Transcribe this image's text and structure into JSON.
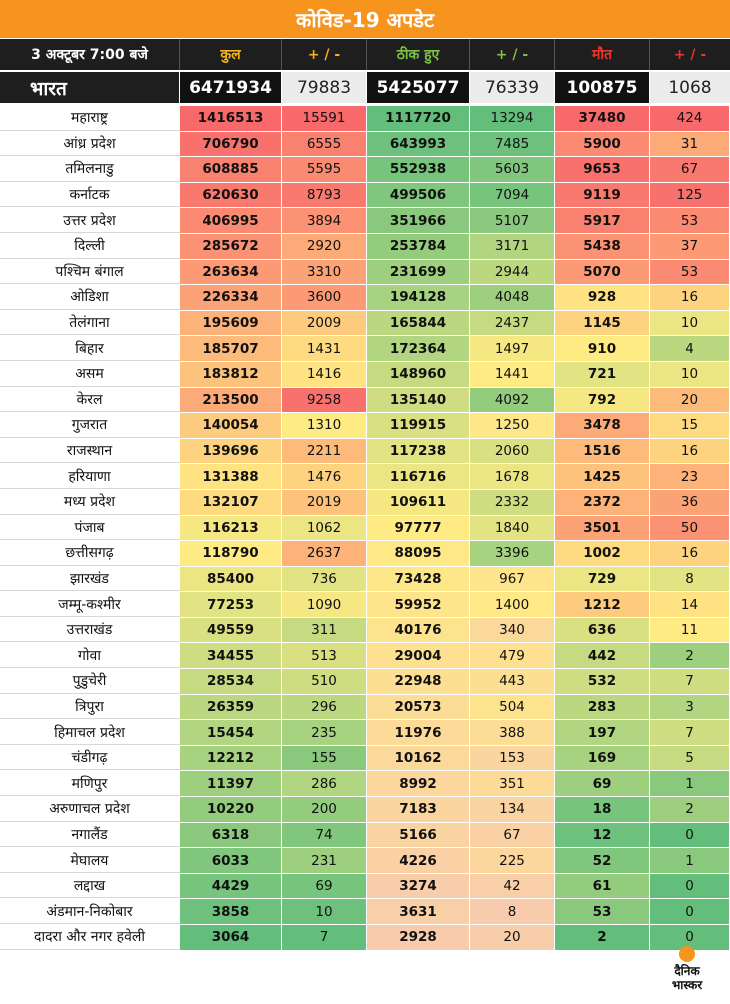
{
  "title": "कोविड-19 अपडेट",
  "header": {
    "date": "3 अक्टूबर 7:00 बजे",
    "total": "कुल",
    "plus_minus": "+ / -",
    "recovered": "ठीक हुए",
    "deaths": "मौत"
  },
  "india": {
    "label": "भारत",
    "total": "6471934",
    "total_change": "79883",
    "recovered": "5425077",
    "recovered_change": "76339",
    "deaths": "100875",
    "deaths_change": "1068"
  },
  "colors": {
    "header_bg": "#f7941d",
    "dark_bg": "#1e1e1e",
    "total_label": "#f2b21a",
    "recovered_label": "#7ac142",
    "deaths_label": "#e6362f"
  },
  "chart_data": {
    "type": "table",
    "columns": [
      "state",
      "total",
      "total_change",
      "recovered",
      "recovered_change",
      "deaths",
      "deaths_change"
    ],
    "rows": [
      {
        "state": "महाराष्ट्र",
        "total": 1416513,
        "total_change": 15591,
        "recovered": 1117720,
        "recovered_change": 13294,
        "deaths": 37480,
        "deaths_change": 424
      },
      {
        "state": "आंध्र प्रदेश",
        "total": 706790,
        "total_change": 6555,
        "recovered": 643993,
        "recovered_change": 7485,
        "deaths": 5900,
        "deaths_change": 31
      },
      {
        "state": "तमिलनाडु",
        "total": 608885,
        "total_change": 5595,
        "recovered": 552938,
        "recovered_change": 5603,
        "deaths": 9653,
        "deaths_change": 67
      },
      {
        "state": "कर्नाटक",
        "total": 620630,
        "total_change": 8793,
        "recovered": 499506,
        "recovered_change": 7094,
        "deaths": 9119,
        "deaths_change": 125
      },
      {
        "state": "उत्तर प्रदेश",
        "total": 406995,
        "total_change": 3894,
        "recovered": 351966,
        "recovered_change": 5107,
        "deaths": 5917,
        "deaths_change": 53
      },
      {
        "state": "दिल्ली",
        "total": 285672,
        "total_change": 2920,
        "recovered": 253784,
        "recovered_change": 3171,
        "deaths": 5438,
        "deaths_change": 37
      },
      {
        "state": "पश्चिम बंगाल",
        "total": 263634,
        "total_change": 3310,
        "recovered": 231699,
        "recovered_change": 2944,
        "deaths": 5070,
        "deaths_change": 53
      },
      {
        "state": "ओडिशा",
        "total": 226334,
        "total_change": 3600,
        "recovered": 194128,
        "recovered_change": 4048,
        "deaths": 928,
        "deaths_change": 16
      },
      {
        "state": "तेलंगाना",
        "total": 195609,
        "total_change": 2009,
        "recovered": 165844,
        "recovered_change": 2437,
        "deaths": 1145,
        "deaths_change": 10
      },
      {
        "state": "बिहार",
        "total": 185707,
        "total_change": 1431,
        "recovered": 172364,
        "recovered_change": 1497,
        "deaths": 910,
        "deaths_change": 4
      },
      {
        "state": "असम",
        "total": 183812,
        "total_change": 1416,
        "recovered": 148960,
        "recovered_change": 1441,
        "deaths": 721,
        "deaths_change": 10
      },
      {
        "state": "केरल",
        "total": 213500,
        "total_change": 9258,
        "recovered": 135140,
        "recovered_change": 4092,
        "deaths": 792,
        "deaths_change": 20
      },
      {
        "state": "गुजरात",
        "total": 140054,
        "total_change": 1310,
        "recovered": 119915,
        "recovered_change": 1250,
        "deaths": 3478,
        "deaths_change": 15
      },
      {
        "state": "राजस्थान",
        "total": 139696,
        "total_change": 2211,
        "recovered": 117238,
        "recovered_change": 2060,
        "deaths": 1516,
        "deaths_change": 16
      },
      {
        "state": "हरियाणा",
        "total": 131388,
        "total_change": 1476,
        "recovered": 116716,
        "recovered_change": 1678,
        "deaths": 1425,
        "deaths_change": 23
      },
      {
        "state": "मध्य प्रदेश",
        "total": 132107,
        "total_change": 2019,
        "recovered": 109611,
        "recovered_change": 2332,
        "deaths": 2372,
        "deaths_change": 36
      },
      {
        "state": "पंजाब",
        "total": 116213,
        "total_change": 1062,
        "recovered": 97777,
        "recovered_change": 1840,
        "deaths": 3501,
        "deaths_change": 50
      },
      {
        "state": "छत्तीसगढ़",
        "total": 118790,
        "total_change": 2637,
        "recovered": 88095,
        "recovered_change": 3396,
        "deaths": 1002,
        "deaths_change": 16
      },
      {
        "state": "झारखंड",
        "total": 85400,
        "total_change": 736,
        "recovered": 73428,
        "recovered_change": 967,
        "deaths": 729,
        "deaths_change": 8
      },
      {
        "state": "जम्मू-कश्मीर",
        "total": 77253,
        "total_change": 1090,
        "recovered": 59952,
        "recovered_change": 1400,
        "deaths": 1212,
        "deaths_change": 14
      },
      {
        "state": "उत्तराखंड",
        "total": 49559,
        "total_change": 311,
        "recovered": 40176,
        "recovered_change": 340,
        "deaths": 636,
        "deaths_change": 11
      },
      {
        "state": "गोवा",
        "total": 34455,
        "total_change": 513,
        "recovered": 29004,
        "recovered_change": 479,
        "deaths": 442,
        "deaths_change": 2
      },
      {
        "state": "पुडुचेरी",
        "total": 28534,
        "total_change": 510,
        "recovered": 22948,
        "recovered_change": 443,
        "deaths": 532,
        "deaths_change": 7
      },
      {
        "state": "त्रिपुरा",
        "total": 26359,
        "total_change": 296,
        "recovered": 20573,
        "recovered_change": 504,
        "deaths": 283,
        "deaths_change": 3
      },
      {
        "state": "हिमाचल प्रदेश",
        "total": 15454,
        "total_change": 235,
        "recovered": 11976,
        "recovered_change": 388,
        "deaths": 197,
        "deaths_change": 7
      },
      {
        "state": "चंडीगढ़",
        "total": 12212,
        "total_change": 155,
        "recovered": 10162,
        "recovered_change": 153,
        "deaths": 169,
        "deaths_change": 5
      },
      {
        "state": "मणिपुर",
        "total": 11397,
        "total_change": 286,
        "recovered": 8992,
        "recovered_change": 351,
        "deaths": 69,
        "deaths_change": 1
      },
      {
        "state": "अरुणाचल प्रदेश",
        "total": 10220,
        "total_change": 200,
        "recovered": 7183,
        "recovered_change": 134,
        "deaths": 18,
        "deaths_change": 2
      },
      {
        "state": "नगालैंड",
        "total": 6318,
        "total_change": 74,
        "recovered": 5166,
        "recovered_change": 67,
        "deaths": 12,
        "deaths_change": 0
      },
      {
        "state": "मेघालय",
        "total": 6033,
        "total_change": 231,
        "recovered": 4226,
        "recovered_change": 225,
        "deaths": 52,
        "deaths_change": 1
      },
      {
        "state": "लद्दाख",
        "total": 4429,
        "total_change": 69,
        "recovered": 3274,
        "recovered_change": 42,
        "deaths": 61,
        "deaths_change": 0
      },
      {
        "state": "अंडमान-निकोबार",
        "total": 3858,
        "total_change": 10,
        "recovered": 3631,
        "recovered_change": 8,
        "deaths": 53,
        "deaths_change": 0
      },
      {
        "state": "दादरा और नगर हवेली",
        "total": 3064,
        "total_change": 7,
        "recovered": 2928,
        "recovered_change": 20,
        "deaths": 2,
        "deaths_change": 0
      }
    ]
  },
  "logo": {
    "line1": "दैनिक",
    "line2": "भास्कर"
  }
}
